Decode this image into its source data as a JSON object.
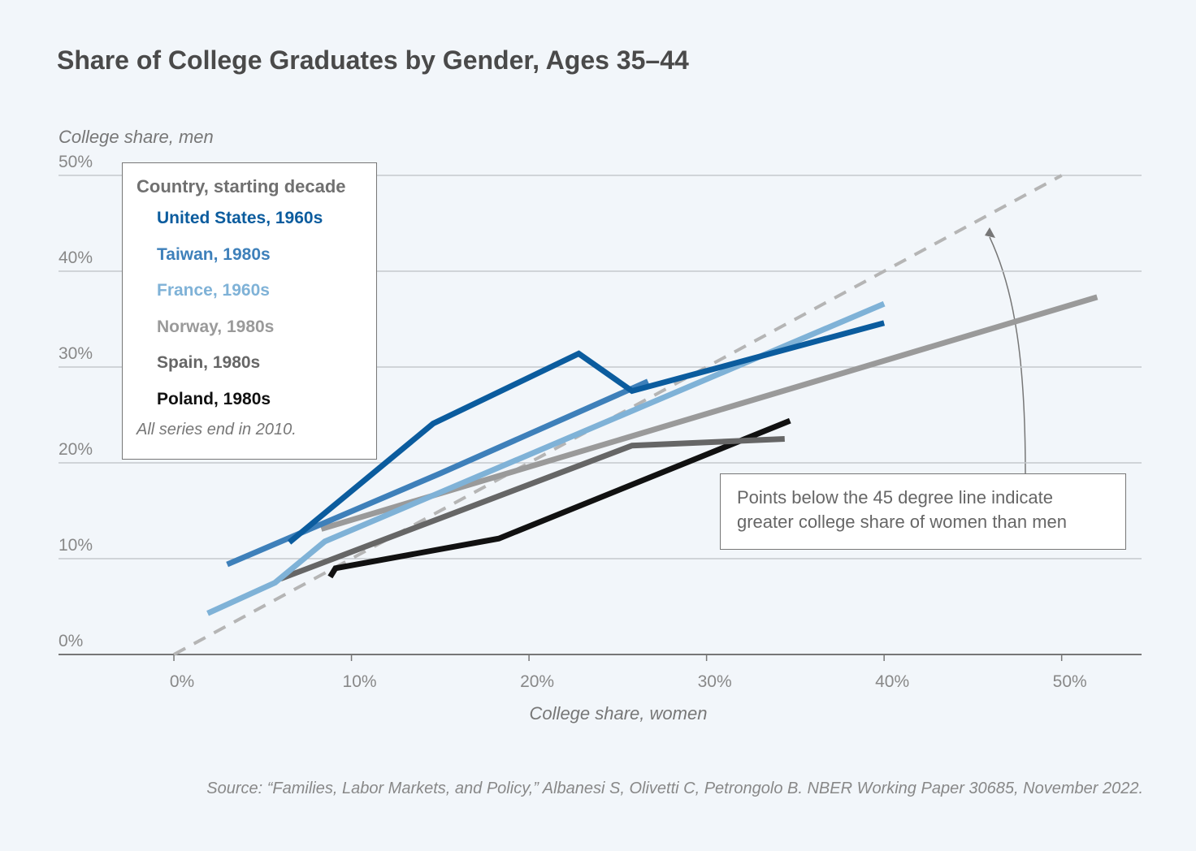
{
  "chart_data": {
    "type": "line",
    "title": "Share of College Graduates by Gender, Ages 35–44",
    "y_label": "College share, men",
    "x_label": "College share, women",
    "source": "Source: “Families, Labor Markets, and Policy,” Albanesi S, Olivetti C, Petrongolo B. NBER Working Paper 30685, November 2022.",
    "legend_title": "Country, starting decade",
    "legend_note": "All series end in 2010.",
    "annotation": "Points below the 45 degree line indicate greater college share of women than men",
    "xlim": [
      -6.5,
      54.5
    ],
    "ylim": [
      0,
      50
    ],
    "xticks": [
      {
        "value": 0,
        "label": "0%"
      },
      {
        "value": 10,
        "label": "10%"
      },
      {
        "value": 20,
        "label": "20%"
      },
      {
        "value": 30,
        "label": "30%"
      },
      {
        "value": 40,
        "label": "40%"
      },
      {
        "value": 50,
        "label": "50%"
      }
    ],
    "yticks": [
      {
        "value": 0,
        "label": "0%"
      },
      {
        "value": 10,
        "label": "10%"
      },
      {
        "value": 20,
        "label": "20%"
      },
      {
        "value": 30,
        "label": "30%"
      },
      {
        "value": 40,
        "label": "40%"
      },
      {
        "value": 50,
        "label": "50%"
      }
    ],
    "grid": true,
    "series": [
      {
        "name": "United States, 1960s",
        "color": "#0b5c9e",
        "x": [
          6.5,
          14.6,
          22.8,
          25.8,
          40
        ],
        "values": [
          11.7,
          24.1,
          31.4,
          27.5,
          34.6
        ]
      },
      {
        "name": "Taiwan, 1980s",
        "color": "#3e80ba",
        "x": [
          3.0,
          15.0,
          26.7
        ],
        "values": [
          9.4,
          18.9,
          28.5
        ]
      },
      {
        "name": "France, 1960s",
        "color": "#7fb2d7",
        "x": [
          1.9,
          5.7,
          8.5,
          40
        ],
        "values": [
          4.3,
          7.5,
          11.8,
          36.6
        ]
      },
      {
        "name": "Norway, 1980s",
        "color": "#9a9a9a",
        "x": [
          8.3,
          52
        ],
        "values": [
          13.1,
          37.3
        ]
      },
      {
        "name": "Spain, 1980s",
        "color": "#666666",
        "x": [
          6.0,
          25.8,
          34.4
        ],
        "values": [
          7.9,
          21.8,
          22.5
        ]
      },
      {
        "name": "Poland, 1980s",
        "color": "#111111",
        "x": [
          8.8,
          9.1,
          18.3,
          34.7
        ],
        "values": [
          8.1,
          9.0,
          12.1,
          24.4
        ]
      }
    ]
  }
}
